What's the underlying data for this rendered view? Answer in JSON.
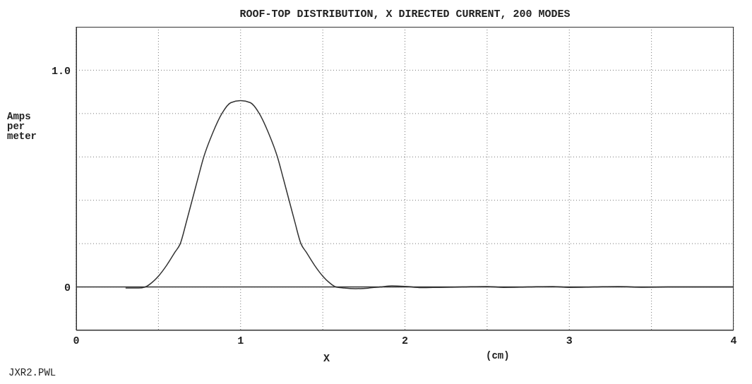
{
  "chart_data": {
    "type": "line",
    "title": "ROOF-TOP DISTRIBUTION, X DIRECTED CURRENT, 200 MODES",
    "xlabel": "X",
    "ylabel": "Amps per meter",
    "annotations": [
      "(cm)",
      "JXR2.PWL"
    ],
    "series": [
      {
        "color": "#333333",
        "x": [
          0.3,
          0.38,
          0.42,
          0.46,
          0.5,
          0.55,
          0.6,
          0.633,
          0.67,
          0.705,
          0.74,
          0.776,
          0.83,
          0.886,
          0.94,
          1.0,
          1.06,
          1.114,
          1.17,
          1.224,
          1.26,
          1.295,
          1.33,
          1.367,
          1.4,
          1.45,
          1.5,
          1.54,
          1.58,
          1.63,
          1.7,
          1.78,
          1.85,
          1.92,
          2.0,
          2.1,
          2.2,
          2.35,
          2.5,
          2.6,
          2.75,
          2.9,
          3.0,
          3.15,
          3.3,
          3.45,
          3.6,
          3.8,
          4.0
        ],
        "values": [
          -0.005,
          -0.005,
          0.0,
          0.02,
          0.05,
          0.1,
          0.16,
          0.2,
          0.3,
          0.4,
          0.5,
          0.6,
          0.71,
          0.8,
          0.85,
          0.86,
          0.85,
          0.8,
          0.71,
          0.6,
          0.5,
          0.4,
          0.3,
          0.2,
          0.16,
          0.1,
          0.05,
          0.02,
          0.0,
          -0.005,
          -0.008,
          -0.005,
          0.0,
          0.005,
          0.003,
          -0.003,
          -0.002,
          0.0,
          0.002,
          -0.002,
          0.0,
          0.002,
          -0.002,
          0.0,
          0.002,
          -0.001,
          0.0,
          0.0,
          0.0
        ]
      }
    ],
    "xlim": [
      0,
      4
    ],
    "xticks": [
      0,
      {
        "value": 0.5,
        "label": null
      },
      1,
      {
        "value": 1.5,
        "label": null
      },
      2,
      {
        "value": 2.5,
        "label": null
      },
      3,
      {
        "value": 3.5,
        "label": null
      },
      4
    ],
    "ylim": [
      -0.2,
      1.2
    ],
    "yticks": [
      0,
      {
        "value": 0.2,
        "label": null
      },
      {
        "value": 0.4,
        "label": null
      },
      {
        "value": 0.6,
        "label": null
      },
      {
        "value": 0.8,
        "label": null
      },
      {
        "value": 1,
        "label": "1.0"
      }
    ],
    "ref_lines": [
      {
        "axis": "y",
        "value": 0,
        "color": "#333333"
      }
    ],
    "grid": true,
    "marker": "none",
    "line_style": "solid",
    "legend": false
  }
}
